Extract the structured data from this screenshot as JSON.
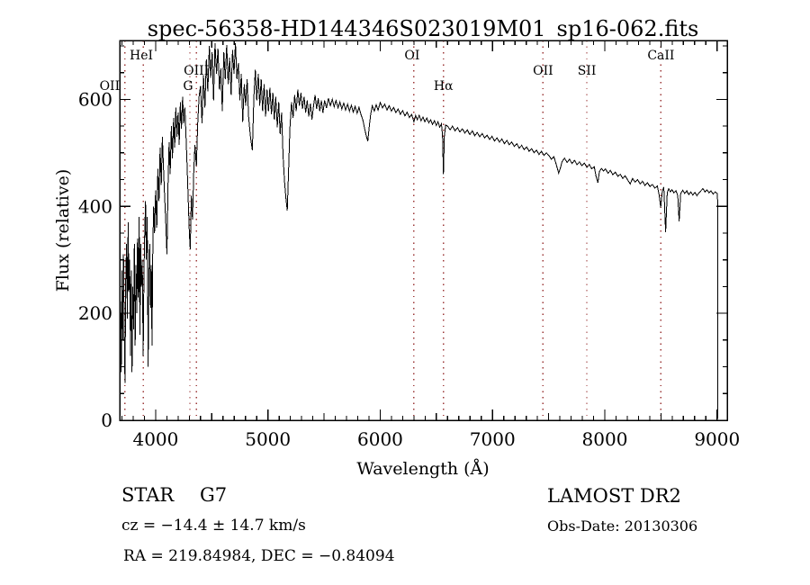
{
  "chart_data": {
    "type": "line",
    "title": "spec-56358-HD144346S023019M01_sp16-062.fits",
    "xlabel": "Wavelength (Å)",
    "ylabel": "Flux (relative)",
    "xlim": [
      3680,
      9090
    ],
    "ylim": [
      0,
      710
    ],
    "x_ticks": [
      4000,
      5000,
      6000,
      7000,
      8000,
      9000
    ],
    "y_ticks": [
      0,
      200,
      400,
      600
    ],
    "x_minor_step": 100,
    "y_minor_step": 50,
    "grid": false,
    "line_color": "#000000",
    "marker_line_color": "#9c3838",
    "line_markers": [
      {
        "label": "OII",
        "wavelength": 3727,
        "row": 2,
        "dx": -17
      },
      {
        "label": "HeI",
        "wavelength": 3889,
        "row": 0,
        "dx": -2
      },
      {
        "label": "OIII",
        "wavelength": 4363,
        "row": 1,
        "dx": 0
      },
      {
        "label": "G",
        "wavelength": 4305,
        "row": 2,
        "dx": -2
      },
      {
        "label": "OI",
        "wavelength": 6300,
        "row": 0,
        "dx": -2
      },
      {
        "label": "Hα",
        "wavelength": 6563,
        "row": 2,
        "dx": 0
      },
      {
        "label": "OII",
        "wavelength": 7450,
        "row": 1,
        "dx": 0
      },
      {
        "label": "SII",
        "wavelength": 7840,
        "row": 1,
        "dx": 0
      },
      {
        "label": "CaII",
        "wavelength": 8500,
        "row": 0,
        "dx": 0
      }
    ],
    "spectrum": [
      [
        3680,
        15
      ],
      [
        3688,
        200
      ],
      [
        3694,
        90
      ],
      [
        3700,
        280
      ],
      [
        3707,
        150
      ],
      [
        3714,
        310
      ],
      [
        3720,
        180
      ],
      [
        3727,
        70
      ],
      [
        3734,
        260
      ],
      [
        3741,
        330
      ],
      [
        3748,
        190
      ],
      [
        3755,
        370
      ],
      [
        3762,
        240
      ],
      [
        3769,
        300
      ],
      [
        3776,
        120
      ],
      [
        3783,
        280
      ],
      [
        3790,
        90
      ],
      [
        3797,
        250
      ],
      [
        3804,
        170
      ],
      [
        3811,
        330
      ],
      [
        3818,
        140
      ],
      [
        3825,
        290
      ],
      [
        3832,
        200
      ],
      [
        3839,
        340
      ],
      [
        3846,
        230
      ],
      [
        3853,
        380
      ],
      [
        3860,
        160
      ],
      [
        3867,
        330
      ],
      [
        3874,
        250
      ],
      [
        3881,
        300
      ],
      [
        3889,
        120
      ],
      [
        3896,
        280
      ],
      [
        3903,
        350
      ],
      [
        3910,
        410
      ],
      [
        3917,
        300
      ],
      [
        3925,
        380
      ],
      [
        3933,
        100
      ],
      [
        3940,
        260
      ],
      [
        3948,
        330
      ],
      [
        3955,
        210
      ],
      [
        3962,
        290
      ],
      [
        3968,
        140
      ],
      [
        3975,
        320
      ],
      [
        3982,
        400
      ],
      [
        3990,
        350
      ],
      [
        4000,
        430
      ],
      [
        4010,
        360
      ],
      [
        4020,
        470
      ],
      [
        4030,
        410
      ],
      [
        4040,
        510
      ],
      [
        4050,
        440
      ],
      [
        4060,
        530
      ],
      [
        4070,
        470
      ],
      [
        4080,
        420
      ],
      [
        4090,
        370
      ],
      [
        4101,
        310
      ],
      [
        4110,
        440
      ],
      [
        4120,
        520
      ],
      [
        4130,
        460
      ],
      [
        4140,
        550
      ],
      [
        4150,
        490
      ],
      [
        4160,
        565
      ],
      [
        4170,
        510
      ],
      [
        4180,
        585
      ],
      [
        4190,
        530
      ],
      [
        4200,
        575
      ],
      [
        4210,
        515
      ],
      [
        4220,
        595
      ],
      [
        4230,
        545
      ],
      [
        4240,
        605
      ],
      [
        4250,
        555
      ],
      [
        4260,
        585
      ],
      [
        4270,
        535
      ],
      [
        4280,
        475
      ],
      [
        4290,
        415
      ],
      [
        4300,
        350
      ],
      [
        4308,
        320
      ],
      [
        4318,
        420
      ],
      [
        4328,
        375
      ],
      [
        4340,
        465
      ],
      [
        4350,
        515
      ],
      [
        4363,
        475
      ],
      [
        4375,
        555
      ],
      [
        4387,
        605
      ],
      [
        4400,
        625
      ],
      [
        4413,
        555
      ],
      [
        4426,
        645
      ],
      [
        4439,
        585
      ],
      [
        4452,
        675
      ],
      [
        4465,
        615
      ],
      [
        4478,
        700
      ],
      [
        4490,
        640
      ],
      [
        4503,
        688
      ],
      [
        4516,
        598
      ],
      [
        4529,
        705
      ],
      [
        4542,
        648
      ],
      [
        4555,
        695
      ],
      [
        4568,
        618
      ],
      [
        4581,
        658
      ],
      [
        4594,
        578
      ],
      [
        4607,
        688
      ],
      [
        4620,
        638
      ],
      [
        4633,
        702
      ],
      [
        4646,
        628
      ],
      [
        4659,
        678
      ],
      [
        4672,
        608
      ],
      [
        4685,
        692
      ],
      [
        4698,
        648
      ],
      [
        4711,
        705
      ],
      [
        4724,
        638
      ],
      [
        4737,
        668
      ],
      [
        4750,
        598
      ],
      [
        4763,
        648
      ],
      [
        4776,
        558
      ],
      [
        4789,
        628
      ],
      [
        4802,
        588
      ],
      [
        4815,
        638
      ],
      [
        4828,
        568
      ],
      [
        4845,
        528
      ],
      [
        4861,
        505
      ],
      [
        4875,
        605
      ],
      [
        4888,
        655
      ],
      [
        4901,
        598
      ],
      [
        4914,
        648
      ],
      [
        4927,
        588
      ],
      [
        4940,
        638
      ],
      [
        4953,
        578
      ],
      [
        4966,
        628
      ],
      [
        4979,
        568
      ],
      [
        4992,
        618
      ],
      [
        5005,
        578
      ],
      [
        5018,
        622
      ],
      [
        5031,
        572
      ],
      [
        5044,
        612
      ],
      [
        5057,
        562
      ],
      [
        5070,
        605
      ],
      [
        5083,
        548
      ],
      [
        5096,
        595
      ],
      [
        5109,
        535
      ],
      [
        5122,
        575
      ],
      [
        5135,
        495
      ],
      [
        5148,
        445
      ],
      [
        5160,
        415
      ],
      [
        5172,
        392
      ],
      [
        5184,
        470
      ],
      [
        5196,
        545
      ],
      [
        5210,
        595
      ],
      [
        5224,
        565
      ],
      [
        5238,
        608
      ],
      [
        5252,
        578
      ],
      [
        5266,
        618
      ],
      [
        5280,
        588
      ],
      [
        5294,
        612
      ],
      [
        5308,
        582
      ],
      [
        5322,
        605
      ],
      [
        5336,
        575
      ],
      [
        5350,
        598
      ],
      [
        5364,
        568
      ],
      [
        5378,
        592
      ],
      [
        5392,
        562
      ],
      [
        5406,
        588
      ],
      [
        5420,
        608
      ],
      [
        5434,
        582
      ],
      [
        5448,
        602
      ],
      [
        5462,
        578
      ],
      [
        5476,
        598
      ],
      [
        5490,
        575
      ],
      [
        5505,
        598
      ],
      [
        5522,
        584
      ],
      [
        5539,
        602
      ],
      [
        5556,
        588
      ],
      [
        5573,
        600
      ],
      [
        5590,
        586
      ],
      [
        5607,
        598
      ],
      [
        5624,
        584
      ],
      [
        5641,
        595
      ],
      [
        5658,
        582
      ],
      [
        5675,
        593
      ],
      [
        5692,
        580
      ],
      [
        5709,
        591
      ],
      [
        5726,
        578
      ],
      [
        5743,
        589
      ],
      [
        5760,
        576
      ],
      [
        5777,
        587
      ],
      [
        5794,
        574
      ],
      [
        5811,
        585
      ],
      [
        5828,
        572
      ],
      [
        5845,
        562
      ],
      [
        5862,
        545
      ],
      [
        5878,
        530
      ],
      [
        5890,
        522
      ],
      [
        5902,
        548
      ],
      [
        5915,
        572
      ],
      [
        5930,
        588
      ],
      [
        5947,
        578
      ],
      [
        5964,
        590
      ],
      [
        5981,
        580
      ],
      [
        6000,
        594
      ],
      [
        6020,
        584
      ],
      [
        6040,
        591
      ],
      [
        6060,
        580
      ],
      [
        6080,
        588
      ],
      [
        6100,
        578
      ],
      [
        6120,
        585
      ],
      [
        6140,
        575
      ],
      [
        6160,
        582
      ],
      [
        6180,
        572
      ],
      [
        6200,
        579
      ],
      [
        6220,
        569
      ],
      [
        6240,
        576
      ],
      [
        6260,
        566
      ],
      [
        6280,
        572
      ],
      [
        6300,
        558
      ],
      [
        6315,
        570
      ],
      [
        6330,
        562
      ],
      [
        6347,
        570
      ],
      [
        6364,
        560
      ],
      [
        6381,
        567
      ],
      [
        6398,
        558
      ],
      [
        6415,
        565
      ],
      [
        6432,
        556
      ],
      [
        6449,
        562
      ],
      [
        6466,
        553
      ],
      [
        6483,
        560
      ],
      [
        6500,
        551
      ],
      [
        6515,
        558
      ],
      [
        6530,
        548
      ],
      [
        6545,
        554
      ],
      [
        6555,
        532
      ],
      [
        6563,
        460
      ],
      [
        6571,
        530
      ],
      [
        6583,
        552
      ],
      [
        6600,
        550
      ],
      [
        6622,
        543
      ],
      [
        6644,
        550
      ],
      [
        6666,
        541
      ],
      [
        6688,
        547
      ],
      [
        6710,
        539
      ],
      [
        6732,
        545
      ],
      [
        6754,
        537
      ],
      [
        6776,
        543
      ],
      [
        6798,
        534
      ],
      [
        6820,
        541
      ],
      [
        6842,
        532
      ],
      [
        6864,
        538
      ],
      [
        6886,
        530
      ],
      [
        6908,
        536
      ],
      [
        6930,
        528
      ],
      [
        6952,
        533
      ],
      [
        6974,
        525
      ],
      [
        6996,
        531
      ],
      [
        7018,
        522
      ],
      [
        7040,
        528
      ],
      [
        7062,
        520
      ],
      [
        7084,
        526
      ],
      [
        7106,
        517
      ],
      [
        7128,
        523
      ],
      [
        7150,
        515
      ],
      [
        7172,
        520
      ],
      [
        7194,
        512
      ],
      [
        7216,
        517
      ],
      [
        7238,
        509
      ],
      [
        7260,
        514
      ],
      [
        7282,
        506
      ],
      [
        7304,
        511
      ],
      [
        7326,
        503
      ],
      [
        7348,
        508
      ],
      [
        7370,
        500
      ],
      [
        7392,
        505
      ],
      [
        7414,
        497
      ],
      [
        7436,
        503
      ],
      [
        7458,
        495
      ],
      [
        7480,
        500
      ],
      [
        7502,
        495
      ],
      [
        7524,
        488
      ],
      [
        7546,
        493
      ],
      [
        7568,
        478
      ],
      [
        7590,
        462
      ],
      [
        7605,
        472
      ],
      [
        7620,
        484
      ],
      [
        7642,
        490
      ],
      [
        7664,
        482
      ],
      [
        7686,
        488
      ],
      [
        7708,
        480
      ],
      [
        7730,
        486
      ],
      [
        7752,
        478
      ],
      [
        7774,
        483
      ],
      [
        7796,
        476
      ],
      [
        7818,
        481
      ],
      [
        7840,
        473
      ],
      [
        7862,
        478
      ],
      [
        7884,
        470
      ],
      [
        7906,
        474
      ],
      [
        7922,
        456
      ],
      [
        7938,
        444
      ],
      [
        7952,
        465
      ],
      [
        7970,
        471
      ],
      [
        7988,
        466
      ],
      [
        8006,
        470
      ],
      [
        8028,
        462
      ],
      [
        8050,
        467
      ],
      [
        8072,
        459
      ],
      [
        8094,
        464
      ],
      [
        8116,
        456
      ],
      [
        8138,
        460
      ],
      [
        8160,
        452
      ],
      [
        8182,
        457
      ],
      [
        8204,
        449
      ],
      [
        8226,
        442
      ],
      [
        8248,
        452
      ],
      [
        8270,
        445
      ],
      [
        8292,
        450
      ],
      [
        8314,
        442
      ],
      [
        8336,
        447
      ],
      [
        8358,
        439
      ],
      [
        8380,
        444
      ],
      [
        8402,
        437
      ],
      [
        8424,
        441
      ],
      [
        8446,
        434
      ],
      [
        8468,
        438
      ],
      [
        8485,
        420
      ],
      [
        8498,
        398
      ],
      [
        8512,
        428
      ],
      [
        8526,
        436
      ],
      [
        8542,
        352
      ],
      [
        8556,
        426
      ],
      [
        8570,
        433
      ],
      [
        8584,
        427
      ],
      [
        8598,
        431
      ],
      [
        8616,
        425
      ],
      [
        8634,
        429
      ],
      [
        8650,
        420
      ],
      [
        8662,
        372
      ],
      [
        8676,
        424
      ],
      [
        8694,
        430
      ],
      [
        8712,
        424
      ],
      [
        8730,
        429
      ],
      [
        8748,
        422
      ],
      [
        8766,
        427
      ],
      [
        8784,
        421
      ],
      [
        8802,
        426
      ],
      [
        8820,
        420
      ],
      [
        8838,
        425
      ],
      [
        8856,
        429
      ],
      [
        8874,
        433
      ],
      [
        8892,
        427
      ],
      [
        8910,
        431
      ],
      [
        8928,
        425
      ],
      [
        8946,
        429
      ],
      [
        8964,
        423
      ],
      [
        8982,
        427
      ],
      [
        9000,
        424
      ],
      [
        9004,
        412
      ],
      [
        9007,
        3
      ]
    ]
  },
  "annotations": {
    "class_label": "STAR",
    "subclass_label": "G7",
    "cz_line": "cz = −14.4 ± 14.7 km/s",
    "radec_line": "RA = 219.84984, DEC =  −0.84094",
    "survey_label": "LAMOST DR2",
    "obsdate_line": "Obs-Date: 20130306"
  }
}
